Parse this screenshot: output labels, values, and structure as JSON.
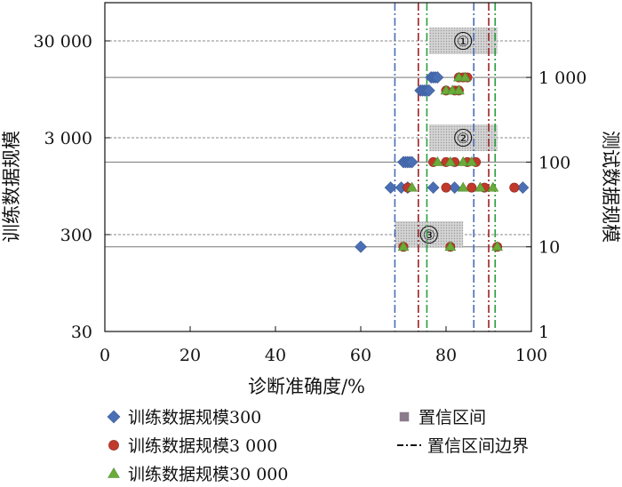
{
  "chart_data": {
    "type": "scatter",
    "xlabel": "诊断准确度/%",
    "ylabel_left": "训练数据规模",
    "ylabel_right": "测试数据规模",
    "xlim": [
      0,
      100
    ],
    "x_ticks": [
      "0",
      "20",
      "40",
      "60",
      "80",
      "100"
    ],
    "left_y_scale": "log",
    "left_y_ticks": [
      "30 000",
      "3 000",
      "300",
      "30"
    ],
    "right_y_scale": "log",
    "right_y_ticks": [
      "1 000",
      "100",
      "10",
      "1"
    ],
    "boundaries": [
      {
        "x": 68,
        "color": "#4a6fb5"
      },
      {
        "x": 73.5,
        "color": "#9b2226"
      },
      {
        "x": 75.5,
        "color": "#2e9d3f"
      },
      {
        "x": 86.5,
        "color": "#4a6fb5"
      },
      {
        "x": 90,
        "color": "#9b2226"
      },
      {
        "x": 91.5,
        "color": "#2e9d3f"
      }
    ],
    "confidence_boxes": [
      {
        "label": "①",
        "train_size": 30000,
        "x_range": [
          76,
          92
        ]
      },
      {
        "label": "②",
        "train_size": 3000,
        "x_range": [
          76,
          92
        ]
      },
      {
        "label": "③",
        "train_size": 300,
        "x_range": [
          68,
          84
        ]
      }
    ],
    "series": [
      {
        "name": "训练数据规模300",
        "color": "#4a6fb5",
        "marker": "diamond",
        "points": [
          {
            "x": 76.5,
            "test": 1000
          },
          {
            "x": 77,
            "test": 1000
          },
          {
            "x": 77.5,
            "test": 1000
          },
          {
            "x": 78,
            "test": 1000
          },
          {
            "x": 74,
            "test": 700
          },
          {
            "x": 74.5,
            "test": 700
          },
          {
            "x": 75,
            "test": 700
          },
          {
            "x": 75.5,
            "test": 700
          },
          {
            "x": 76,
            "test": 700
          },
          {
            "x": 70,
            "test": 100
          },
          {
            "x": 70.5,
            "test": 100
          },
          {
            "x": 71,
            "test": 100
          },
          {
            "x": 71.5,
            "test": 100
          },
          {
            "x": 72,
            "test": 100
          },
          {
            "x": 67,
            "test": 50
          },
          {
            "x": 69.5,
            "test": 50
          },
          {
            "x": 71,
            "test": 50
          },
          {
            "x": 77,
            "test": 50
          },
          {
            "x": 82,
            "test": 50
          },
          {
            "x": 98,
            "test": 50
          },
          {
            "x": 60,
            "test": 10
          }
        ]
      },
      {
        "name": "训练数据规模3 000",
        "color": "#c0392b",
        "marker": "circle",
        "points": [
          {
            "x": 83,
            "test": 1000
          },
          {
            "x": 84,
            "test": 1000
          },
          {
            "x": 85,
            "test": 1000
          },
          {
            "x": 80,
            "test": 700
          },
          {
            "x": 82,
            "test": 700
          },
          {
            "x": 83,
            "test": 700
          },
          {
            "x": 77,
            "test": 100
          },
          {
            "x": 80,
            "test": 100
          },
          {
            "x": 82,
            "test": 100
          },
          {
            "x": 85,
            "test": 100
          },
          {
            "x": 87,
            "test": 100
          },
          {
            "x": 71,
            "test": 50
          },
          {
            "x": 80,
            "test": 50
          },
          {
            "x": 86,
            "test": 50
          },
          {
            "x": 89,
            "test": 50
          },
          {
            "x": 96,
            "test": 50
          },
          {
            "x": 70,
            "test": 10
          },
          {
            "x": 81,
            "test": 10
          },
          {
            "x": 92,
            "test": 10
          }
        ]
      },
      {
        "name": "训练数据规模30 000",
        "color": "#6aab3a",
        "marker": "triangle",
        "points": [
          {
            "x": 83,
            "test": 1000
          },
          {
            "x": 84.5,
            "test": 1000
          },
          {
            "x": 80,
            "test": 700
          },
          {
            "x": 81.5,
            "test": 700
          },
          {
            "x": 83,
            "test": 700
          },
          {
            "x": 78,
            "test": 100
          },
          {
            "x": 81,
            "test": 100
          },
          {
            "x": 84,
            "test": 100
          },
          {
            "x": 86,
            "test": 100
          },
          {
            "x": 72,
            "test": 50
          },
          {
            "x": 84,
            "test": 50
          },
          {
            "x": 88,
            "test": 50
          },
          {
            "x": 91,
            "test": 50
          },
          {
            "x": 70,
            "test": 10
          },
          {
            "x": 81,
            "test": 10
          },
          {
            "x": 92,
            "test": 10
          }
        ]
      }
    ],
    "legend": [
      {
        "label": "训练数据规模300",
        "kind": "diamond",
        "color": "#4a6fb5"
      },
      {
        "label": "置信区间",
        "kind": "square",
        "color": "#8a7a8c"
      },
      {
        "label": "训练数据规模3 000",
        "kind": "circle",
        "color": "#c0392b"
      },
      {
        "label": "置信区间边界",
        "kind": "dashdot",
        "color": "#111111"
      },
      {
        "label": "训练数据规模30 000",
        "kind": "triangle",
        "color": "#6aab3a"
      }
    ]
  }
}
